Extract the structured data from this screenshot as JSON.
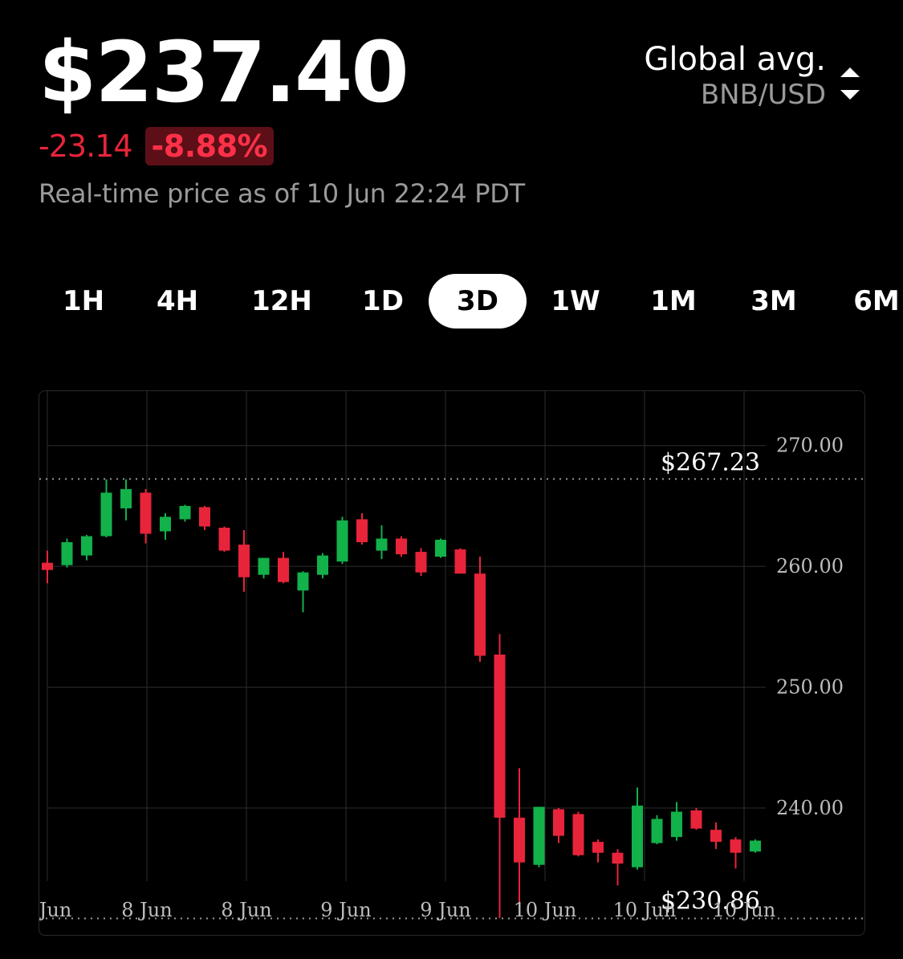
{
  "header": {
    "price": "$237.40",
    "change_abs": "-23.14",
    "change_pct": "-8.88%",
    "timestamp": "Real-time price as of 10 Jun 22:24 PDT"
  },
  "exchange": {
    "name": "Global avg.",
    "pair": "BNB/USD",
    "sort_icon": "sort-arrows-icon"
  },
  "tabs": [
    {
      "label": "1H",
      "active": false
    },
    {
      "label": "4H",
      "active": false
    },
    {
      "label": "12H",
      "active": false
    },
    {
      "label": "1D",
      "active": false
    },
    {
      "label": "3D",
      "active": true
    },
    {
      "label": "1W",
      "active": false
    },
    {
      "label": "1M",
      "active": false
    },
    {
      "label": "3M",
      "active": false
    },
    {
      "label": "6M",
      "active": false
    }
  ],
  "colors": {
    "up": "#12b14a",
    "down": "#e8243a",
    "grid": "#2e2e2e",
    "badge_bg": "#5c0f17"
  },
  "chart_data": {
    "type": "candlestick",
    "ylim": [
      229.5,
      274.5
    ],
    "yticks": [
      270,
      260,
      250,
      240
    ],
    "ytick_labels": [
      "270.00",
      "260.00",
      "250.00",
      "240.00"
    ],
    "xtick_labels": [
      "Jun",
      "8 Jun",
      "8 Jun",
      "9 Jun",
      "9 Jun",
      "10 Jun",
      "10 Jun",
      "10 Jun"
    ],
    "high_label": "$267.23",
    "low_label": "$230.86",
    "high_value": 267.23,
    "low_value": 230.86,
    "candles": [
      {
        "o": 260.3,
        "h": 261.3,
        "l": 258.6,
        "c": 259.7
      },
      {
        "o": 260.1,
        "h": 262.3,
        "l": 259.9,
        "c": 262.0
      },
      {
        "o": 260.9,
        "h": 262.6,
        "l": 260.5,
        "c": 262.5
      },
      {
        "o": 262.5,
        "h": 267.2,
        "l": 262.4,
        "c": 266.1
      },
      {
        "o": 264.8,
        "h": 267.2,
        "l": 263.8,
        "c": 266.4
      },
      {
        "o": 266.1,
        "h": 266.4,
        "l": 261.9,
        "c": 262.7
      },
      {
        "o": 262.9,
        "h": 264.4,
        "l": 262.2,
        "c": 264.1
      },
      {
        "o": 263.9,
        "h": 265.1,
        "l": 263.7,
        "c": 265.0
      },
      {
        "o": 264.9,
        "h": 265.0,
        "l": 263.0,
        "c": 263.3
      },
      {
        "o": 263.2,
        "h": 263.3,
        "l": 261.2,
        "c": 261.3
      },
      {
        "o": 261.8,
        "h": 263.0,
        "l": 257.9,
        "c": 259.1
      },
      {
        "o": 259.3,
        "h": 260.7,
        "l": 259.0,
        "c": 260.7
      },
      {
        "o": 260.7,
        "h": 261.2,
        "l": 258.6,
        "c": 258.7
      },
      {
        "o": 258.0,
        "h": 259.6,
        "l": 256.2,
        "c": 259.5
      },
      {
        "o": 259.3,
        "h": 261.1,
        "l": 259.0,
        "c": 260.9
      },
      {
        "o": 260.4,
        "h": 264.1,
        "l": 260.2,
        "c": 263.8
      },
      {
        "o": 263.9,
        "h": 264.4,
        "l": 261.8,
        "c": 262.0
      },
      {
        "o": 261.3,
        "h": 263.4,
        "l": 260.6,
        "c": 262.3
      },
      {
        "o": 262.3,
        "h": 262.5,
        "l": 260.8,
        "c": 261.0
      },
      {
        "o": 261.2,
        "h": 261.5,
        "l": 259.2,
        "c": 259.5
      },
      {
        "o": 260.8,
        "h": 262.3,
        "l": 260.7,
        "c": 262.2
      },
      {
        "o": 261.4,
        "h": 261.5,
        "l": 259.4,
        "c": 259.4
      },
      {
        "o": 259.4,
        "h": 260.8,
        "l": 252.1,
        "c": 252.6
      },
      {
        "o": 252.7,
        "h": 254.4,
        "l": 230.9,
        "c": 239.2
      },
      {
        "o": 239.2,
        "h": 243.3,
        "l": 231.7,
        "c": 235.5
      },
      {
        "o": 235.3,
        "h": 240.1,
        "l": 235.1,
        "c": 240.1
      },
      {
        "o": 239.9,
        "h": 240.0,
        "l": 237.1,
        "c": 237.7
      },
      {
        "o": 239.5,
        "h": 239.7,
        "l": 236.0,
        "c": 236.1
      },
      {
        "o": 237.2,
        "h": 237.4,
        "l": 235.5,
        "c": 236.3
      },
      {
        "o": 236.3,
        "h": 236.6,
        "l": 233.6,
        "c": 235.4
      },
      {
        "o": 235.1,
        "h": 241.7,
        "l": 234.9,
        "c": 240.2
      },
      {
        "o": 237.1,
        "h": 239.4,
        "l": 237.0,
        "c": 239.1
      },
      {
        "o": 237.6,
        "h": 240.5,
        "l": 237.3,
        "c": 239.7
      },
      {
        "o": 239.8,
        "h": 240.0,
        "l": 238.2,
        "c": 238.3
      },
      {
        "o": 238.2,
        "h": 238.8,
        "l": 236.6,
        "c": 237.2
      },
      {
        "o": 237.4,
        "h": 237.6,
        "l": 235.0,
        "c": 236.3
      },
      {
        "o": 236.4,
        "h": 237.4,
        "l": 236.3,
        "c": 237.3
      }
    ]
  }
}
